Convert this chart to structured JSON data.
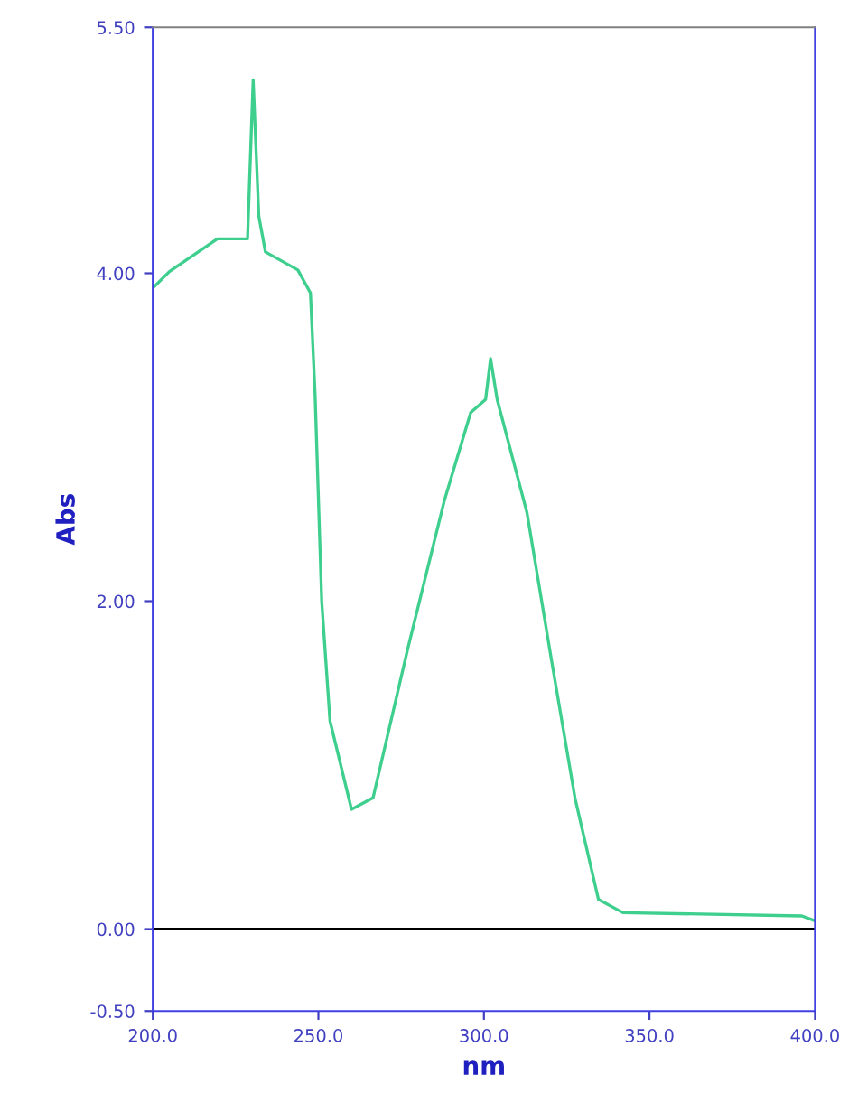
{
  "chart_data": {
    "type": "line",
    "xlabel": "nm",
    "ylabel": "Abs",
    "x": [
      200,
      205,
      219.5,
      228.6,
      230.3,
      232,
      234,
      243.8,
      247.6,
      249,
      251,
      253.5,
      260,
      266.5,
      277,
      288,
      296,
      300.5,
      302,
      304,
      313,
      320.5,
      327.5,
      334.6,
      342,
      396,
      400
    ],
    "series": [
      {
        "color": "#3ecf8e",
        "values": [
          3.91,
          4.01,
          4.21,
          4.21,
          5.18,
          4.35,
          4.13,
          4.02,
          3.88,
          3.26,
          2.0,
          1.27,
          0.73,
          0.8,
          1.71,
          2.61,
          3.15,
          3.23,
          3.48,
          3.23,
          2.54,
          1.63,
          0.8,
          0.18,
          0.1,
          0.08,
          0.05
        ]
      }
    ],
    "xlim": [
      200,
      400
    ],
    "xticks": [
      {
        "value": 200,
        "label": "200.0"
      },
      {
        "value": 250,
        "label": "250.0"
      },
      {
        "value": 300,
        "label": "300.0"
      },
      {
        "value": 350,
        "label": "350.0"
      },
      {
        "value": 400,
        "label": "400.0"
      }
    ],
    "ylim": [
      -0.5,
      5.5
    ],
    "yticks": [
      {
        "value": -0.5,
        "label": "-0.50"
      },
      {
        "value": 0,
        "label": "0.00"
      },
      {
        "value": 2,
        "label": "2.00"
      },
      {
        "value": 4,
        "label": "4.00"
      },
      {
        "value": 5.5,
        "label": "5.50"
      }
    ],
    "ref_lines": [
      {
        "axis": "y",
        "value": 0,
        "color": "#000000"
      }
    ],
    "grid": false,
    "legend": false,
    "marker": "none",
    "line_style": "solid"
  }
}
